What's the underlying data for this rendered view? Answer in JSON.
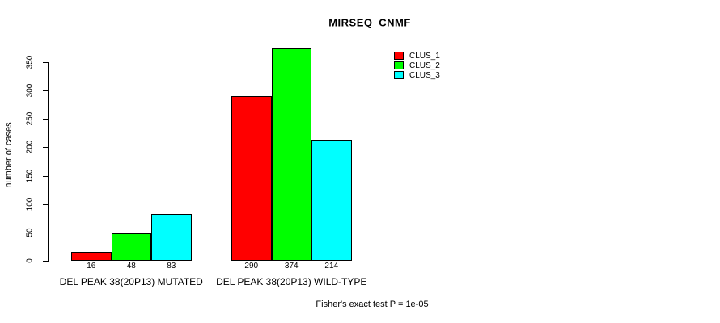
{
  "chart_data": {
    "type": "bar",
    "title": "MIRSEQ_CNMF",
    "ylabel": "number of cases",
    "xlabel": "",
    "ylim": [
      0,
      350
    ],
    "yticks": [
      0,
      50,
      100,
      150,
      200,
      250,
      300,
      350
    ],
    "grid": false,
    "legend_position": "top-right",
    "categories": [
      "DEL PEAK 38(20P13) MUTATED",
      "DEL PEAK 38(20P13) WILD-TYPE"
    ],
    "series": [
      {
        "name": "CLUS_1",
        "color": "#ff0000",
        "values": [
          16,
          290
        ]
      },
      {
        "name": "CLUS_2",
        "color": "#00ff00",
        "values": [
          48,
          374
        ]
      },
      {
        "name": "CLUS_3",
        "color": "#00ffff",
        "values": [
          83,
          214
        ]
      }
    ],
    "bar_value_labels": [
      [
        "16",
        "48",
        "83"
      ],
      [
        "290",
        "374",
        "214"
      ]
    ],
    "annotation": "Fisher's exact test P = 1e-05"
  }
}
